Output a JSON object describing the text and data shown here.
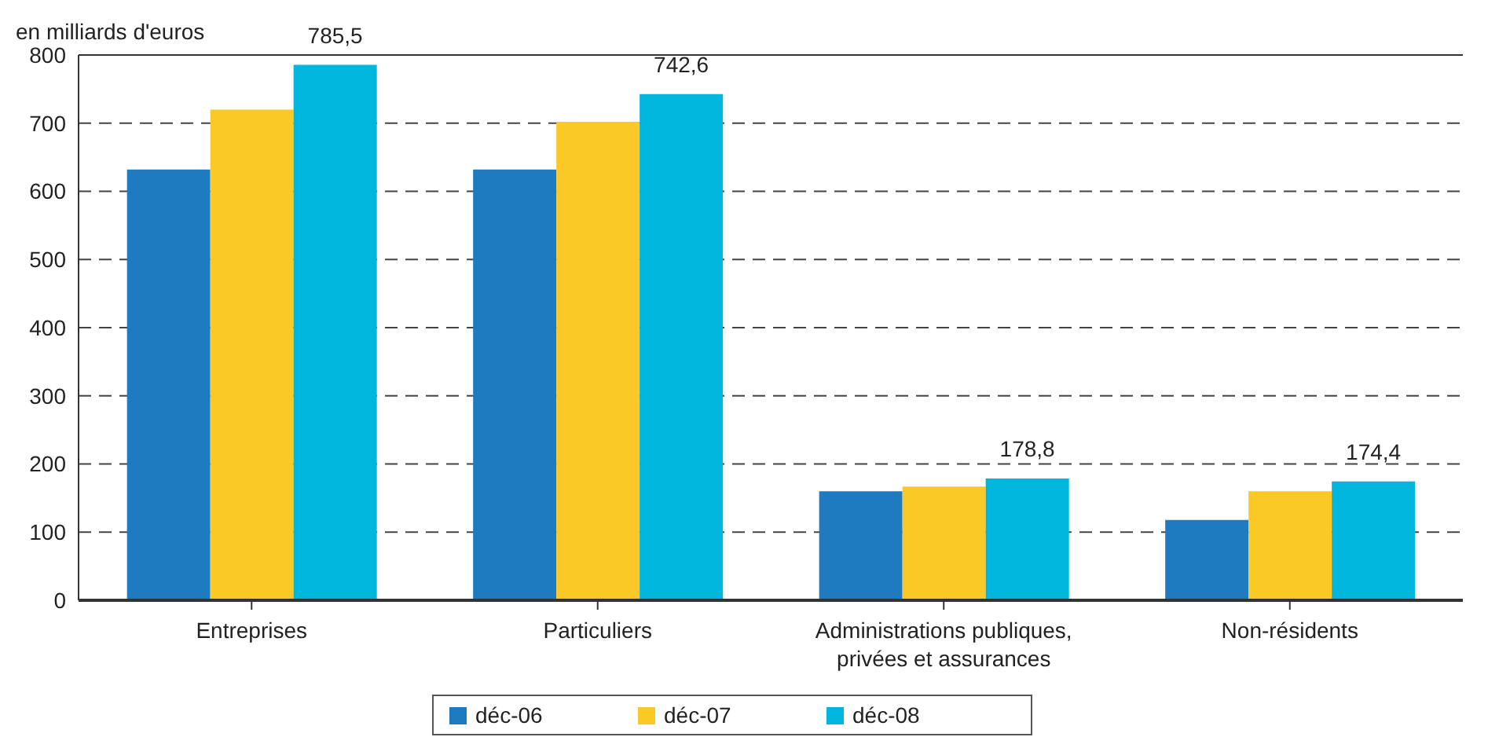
{
  "chart_data": {
    "type": "bar",
    "ylabel": "en milliards d'euros",
    "categories": [
      "Entreprises",
      "Particuliers",
      "Administrations publiques, privées et assurances",
      "Non-résidents"
    ],
    "series": [
      {
        "name": "déc-06",
        "color": "#1f7bbf",
        "values": [
          632,
          632,
          160,
          118
        ]
      },
      {
        "name": "déc-07",
        "color": "#fbc925",
        "values": [
          720,
          702,
          167,
          160
        ]
      },
      {
        "name": "déc-08",
        "color": "#00b6dc",
        "values": [
          785.5,
          742.6,
          178.8,
          174.4
        ],
        "value_labels": [
          "785,5",
          "742,6",
          "178,8",
          "174,4"
        ]
      }
    ],
    "ylim": [
      0,
      800
    ],
    "yticks": [
      0,
      100,
      200,
      300,
      400,
      500,
      600,
      700,
      800
    ],
    "grid": "y",
    "legend": "bottom"
  }
}
